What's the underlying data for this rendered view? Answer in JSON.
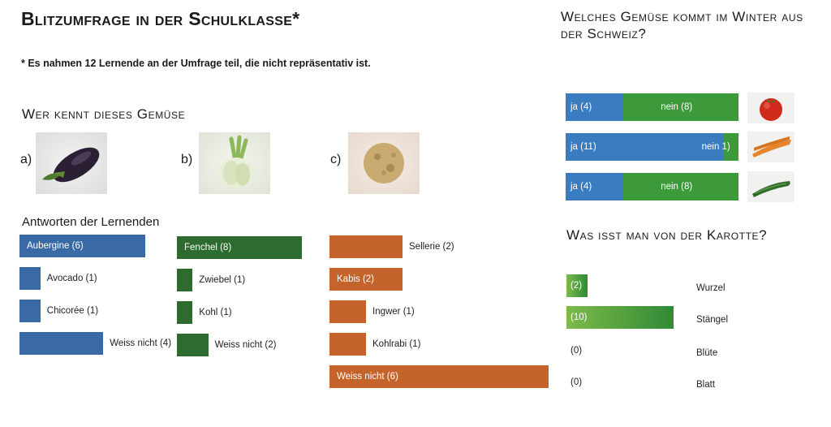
{
  "title": "Blitzumfrage in der Schulklasse*",
  "footnote": "* Es nahmen 12 Lernende an der Umfrage teil, die nicht repräsentativ ist.",
  "question_known": "Wer kennt dieses Gemüse",
  "options": [
    {
      "letter": "a)",
      "icon": "eggplant-photo"
    },
    {
      "letter": "b)",
      "icon": "fennel-photo"
    },
    {
      "letter": "c)",
      "icon": "celeriac-photo"
    }
  ],
  "answers_heading": "Antworten der Lernenden",
  "question_winter": "Welches Gemüse kommt im Winter aus der Schweiz?",
  "question_carrot": "Was isst man von der Karotte?",
  "winter_icons": [
    "tomato-photo",
    "carrot-photo",
    "cucumber-photo"
  ],
  "colors": {
    "blue": "#3a6aa5",
    "green": "#2e6b2f",
    "orange": "#c4642a",
    "ja_blue": "#3b7cc0",
    "nein_green": "#3d9a3a",
    "carrot_green_light": "#7dba4a",
    "carrot_green_dark": "#2f8a36"
  },
  "chart_data": [
    {
      "type": "bar",
      "name": "a)",
      "categories": [
        "Aubergine (6)",
        "Avocado (1)",
        "Chicorée (1)",
        "Weiss nicht (4)"
      ],
      "values": [
        6,
        1,
        1,
        4
      ]
    },
    {
      "type": "bar",
      "name": "b)",
      "categories": [
        "Fenchel (8)",
        "Zwiebel (1)",
        "Kohl (1)",
        "Weiss nicht (2)"
      ],
      "values": [
        8,
        1,
        1,
        2
      ]
    },
    {
      "type": "bar",
      "name": "c)",
      "categories": [
        "Sellerie (2)",
        "Kabis (2)",
        "Ingwer (1)",
        "Kohlrabi (1)",
        "Weiss nicht (6)"
      ],
      "values": [
        2,
        2,
        1,
        1,
        6
      ]
    },
    {
      "type": "bar",
      "stacked": true,
      "rows": [
        {
          "ja": 4,
          "nein": 8,
          "ja_label": "ja (4)",
          "nein_label": "nein (8)"
        },
        {
          "ja": 11,
          "nein": 1,
          "ja_label": "ja (11)",
          "nein_label": "nein 1)"
        },
        {
          "ja": 4,
          "nein": 8,
          "ja_label": "ja (4)",
          "nein_label": "nein (8)"
        }
      ]
    },
    {
      "type": "bar",
      "categories": [
        "Wurzel",
        "Stängel",
        "Blüte",
        "Blatt"
      ],
      "values": [
        2,
        10,
        0,
        0
      ],
      "value_labels": [
        "(2)",
        "(10)",
        "(0)",
        "(0)"
      ]
    }
  ]
}
